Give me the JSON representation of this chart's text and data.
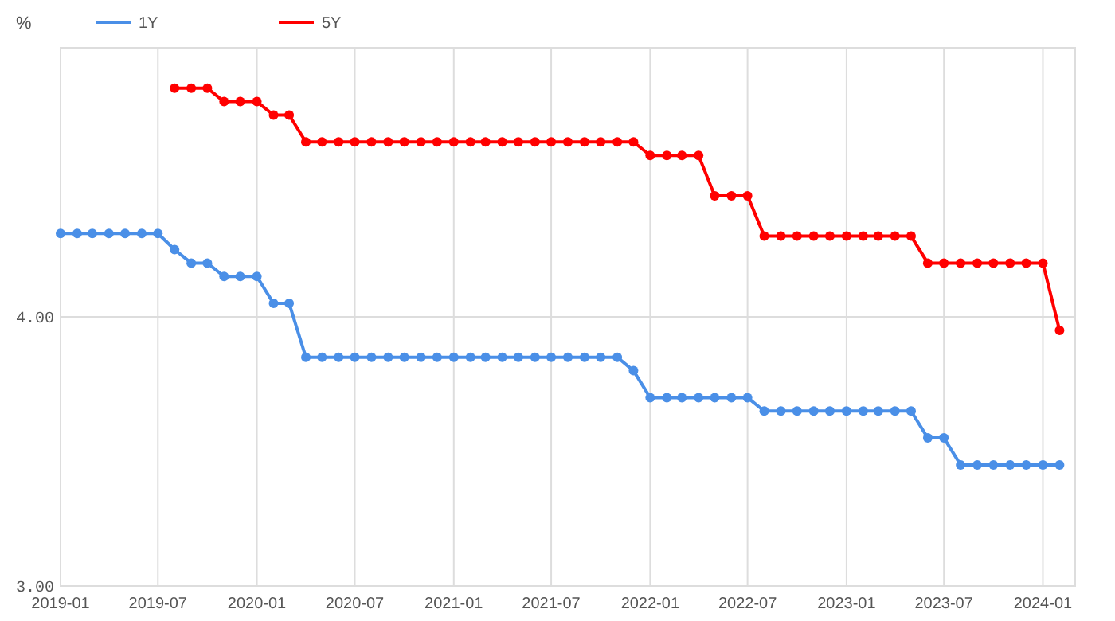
{
  "chart_data": {
    "type": "line",
    "ylabel": "%",
    "ylim": [
      3,
      5
    ],
    "yticks": [
      {
        "value": 3,
        "label": "3.00"
      },
      {
        "value": 4,
        "label": "4.00"
      }
    ],
    "xlim": [
      "2019-01",
      "2024-03"
    ],
    "xticks": [
      "2019-01",
      "2019-07",
      "2020-01",
      "2020-07",
      "2021-01",
      "2021-07",
      "2022-01",
      "2022-07",
      "2023-01",
      "2023-07",
      "2024-01"
    ],
    "grid": true,
    "legend": "top left",
    "marker": "circle",
    "line_style": "solid",
    "series": [
      {
        "name": "1Y",
        "color": "#4a8fe7",
        "x": [
          "2019-01",
          "2019-02",
          "2019-03",
          "2019-04",
          "2019-05",
          "2019-06",
          "2019-07",
          "2019-08",
          "2019-09",
          "2019-10",
          "2019-11",
          "2019-12",
          "2020-01",
          "2020-02",
          "2020-03",
          "2020-04",
          "2020-05",
          "2020-06",
          "2020-07",
          "2020-08",
          "2020-09",
          "2020-10",
          "2020-11",
          "2020-12",
          "2021-01",
          "2021-02",
          "2021-03",
          "2021-04",
          "2021-05",
          "2021-06",
          "2021-07",
          "2021-08",
          "2021-09",
          "2021-10",
          "2021-11",
          "2021-12",
          "2022-01",
          "2022-02",
          "2022-03",
          "2022-04",
          "2022-05",
          "2022-06",
          "2022-07",
          "2022-08",
          "2022-09",
          "2022-10",
          "2022-11",
          "2022-12",
          "2023-01",
          "2023-02",
          "2023-03",
          "2023-04",
          "2023-05",
          "2023-06",
          "2023-07",
          "2023-08",
          "2023-09",
          "2023-10",
          "2023-11",
          "2023-12",
          "2024-01",
          "2024-02"
        ],
        "values": [
          4.31,
          4.31,
          4.31,
          4.31,
          4.31,
          4.31,
          4.31,
          4.25,
          4.2,
          4.2,
          4.15,
          4.15,
          4.15,
          4.05,
          4.05,
          3.85,
          3.85,
          3.85,
          3.85,
          3.85,
          3.85,
          3.85,
          3.85,
          3.85,
          3.85,
          3.85,
          3.85,
          3.85,
          3.85,
          3.85,
          3.85,
          3.85,
          3.85,
          3.85,
          3.85,
          3.8,
          3.7,
          3.7,
          3.7,
          3.7,
          3.7,
          3.7,
          3.7,
          3.65,
          3.65,
          3.65,
          3.65,
          3.65,
          3.65,
          3.65,
          3.65,
          3.65,
          3.65,
          3.55,
          3.55,
          3.45,
          3.45,
          3.45,
          3.45,
          3.45,
          3.45,
          3.45
        ]
      },
      {
        "name": "5Y",
        "color": "#ff0000",
        "x": [
          "2019-08",
          "2019-09",
          "2019-10",
          "2019-11",
          "2019-12",
          "2020-01",
          "2020-02",
          "2020-03",
          "2020-04",
          "2020-05",
          "2020-06",
          "2020-07",
          "2020-08",
          "2020-09",
          "2020-10",
          "2020-11",
          "2020-12",
          "2021-01",
          "2021-02",
          "2021-03",
          "2021-04",
          "2021-05",
          "2021-06",
          "2021-07",
          "2021-08",
          "2021-09",
          "2021-10",
          "2021-11",
          "2021-12",
          "2022-01",
          "2022-02",
          "2022-03",
          "2022-04",
          "2022-05",
          "2022-06",
          "2022-07",
          "2022-08",
          "2022-09",
          "2022-10",
          "2022-11",
          "2022-12",
          "2023-01",
          "2023-02",
          "2023-03",
          "2023-04",
          "2023-05",
          "2023-06",
          "2023-07",
          "2023-08",
          "2023-09",
          "2023-10",
          "2023-11",
          "2023-12",
          "2024-01",
          "2024-02"
        ],
        "values": [
          4.85,
          4.85,
          4.85,
          4.8,
          4.8,
          4.8,
          4.75,
          4.75,
          4.65,
          4.65,
          4.65,
          4.65,
          4.65,
          4.65,
          4.65,
          4.65,
          4.65,
          4.65,
          4.65,
          4.65,
          4.65,
          4.65,
          4.65,
          4.65,
          4.65,
          4.65,
          4.65,
          4.65,
          4.65,
          4.6,
          4.6,
          4.6,
          4.6,
          4.45,
          4.45,
          4.45,
          4.3,
          4.3,
          4.3,
          4.3,
          4.3,
          4.3,
          4.3,
          4.3,
          4.3,
          4.3,
          4.2,
          4.2,
          4.2,
          4.2,
          4.2,
          4.2,
          4.2,
          4.2,
          3.95
        ]
      }
    ]
  }
}
